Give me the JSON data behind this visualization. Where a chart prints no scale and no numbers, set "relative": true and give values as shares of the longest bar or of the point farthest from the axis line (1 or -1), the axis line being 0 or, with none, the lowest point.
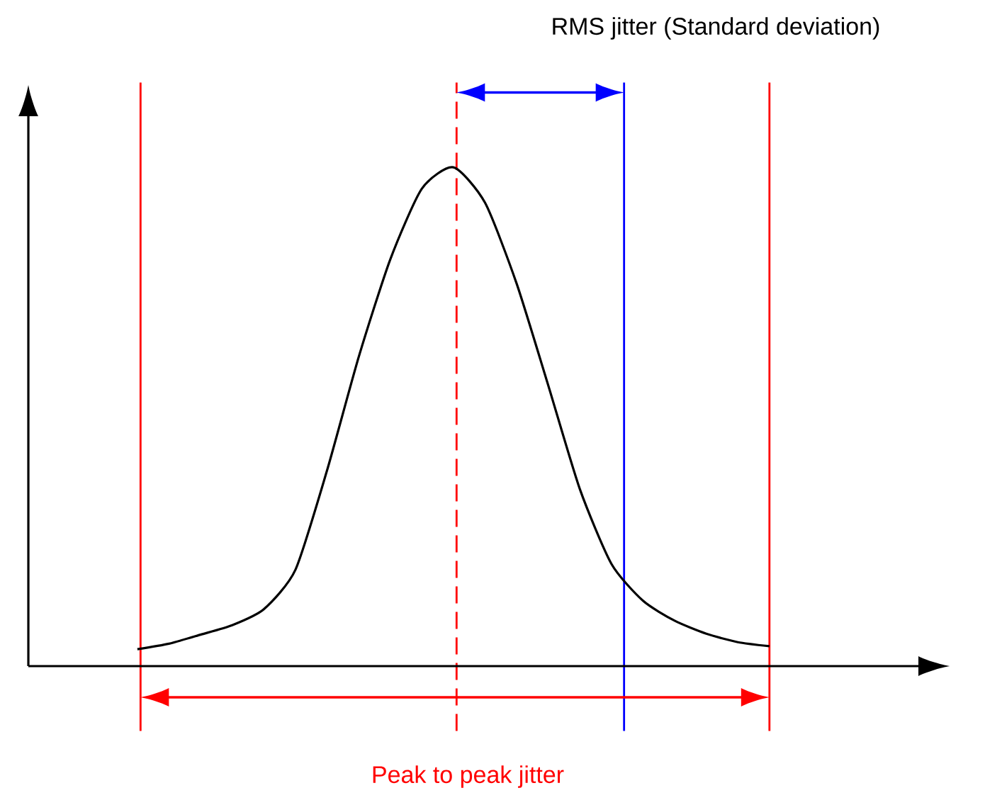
{
  "chart_data": {
    "type": "line",
    "relative": true,
    "categories": [
      null,
      null,
      null,
      null,
      null,
      null,
      null,
      null,
      null,
      null,
      null,
      null,
      null,
      null,
      null,
      null,
      null,
      null,
      null,
      null,
      null
    ],
    "series": [
      {
        "color": "#000000",
        "values": [
          0.034,
          0.045,
          0.063,
          0.082,
          0.114,
          0.193,
          0.392,
          0.619,
          0.815,
          0.957,
          1,
          0.929,
          0.767,
          0.563,
          0.355,
          0.205,
          0.131,
          0.091,
          0.065,
          0.048,
          0.04
        ]
      }
    ],
    "annotations": [
      "RMS jitter (Standard deviation)",
      "Peak to peak jitter"
    ]
  }
}
